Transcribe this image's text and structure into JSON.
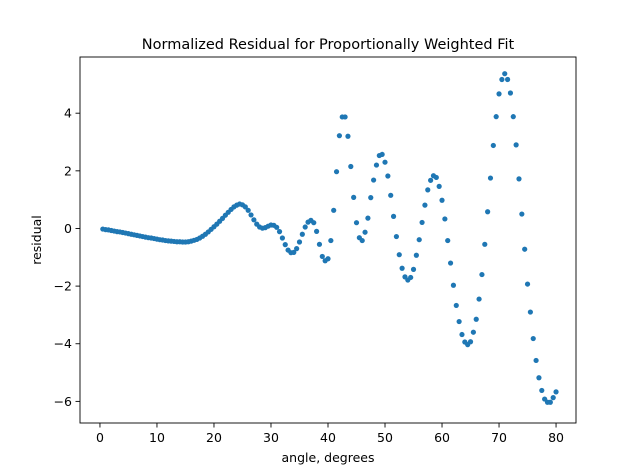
{
  "chart_data": {
    "type": "scatter",
    "title": "Normalized Residual for Proportionally Weighted Fit",
    "xlabel": "angle, degrees",
    "ylabel": "residual",
    "xlim": [
      -3.5,
      83.5
    ],
    "ylim": [
      -6.75,
      5.95
    ],
    "xticks": [
      0,
      10,
      20,
      30,
      40,
      50,
      60,
      70,
      80
    ],
    "yticks": [
      -6,
      -4,
      -2,
      0,
      2,
      4
    ],
    "xtick_labels": [
      "0",
      "10",
      "20",
      "30",
      "40",
      "50",
      "60",
      "70",
      "80"
    ],
    "ytick_labels": [
      "−6",
      "−4",
      "−2",
      "0",
      "2",
      "4"
    ],
    "grid": false,
    "marker_color": "#1f77b4",
    "series": [
      {
        "points": [
          [
            0.5,
            -0.02
          ],
          [
            1.0,
            -0.04
          ],
          [
            1.5,
            -0.05
          ],
          [
            2.0,
            -0.07
          ],
          [
            2.5,
            -0.09
          ],
          [
            3.0,
            -0.11
          ],
          [
            3.5,
            -0.12
          ],
          [
            4.0,
            -0.14
          ],
          [
            4.5,
            -0.16
          ],
          [
            5.0,
            -0.18
          ],
          [
            5.5,
            -0.2
          ],
          [
            6.0,
            -0.22
          ],
          [
            6.5,
            -0.24
          ],
          [
            7.0,
            -0.26
          ],
          [
            7.5,
            -0.28
          ],
          [
            8.0,
            -0.3
          ],
          [
            8.5,
            -0.32
          ],
          [
            9.0,
            -0.33
          ],
          [
            9.5,
            -0.35
          ],
          [
            10.0,
            -0.37
          ],
          [
            10.5,
            -0.39
          ],
          [
            11.0,
            -0.4
          ],
          [
            11.5,
            -0.42
          ],
          [
            12.0,
            -0.43
          ],
          [
            12.5,
            -0.44
          ],
          [
            13.0,
            -0.45
          ],
          [
            13.5,
            -0.46
          ],
          [
            14.0,
            -0.46
          ],
          [
            14.5,
            -0.47
          ],
          [
            15.0,
            -0.47
          ],
          [
            15.5,
            -0.46
          ],
          [
            16.0,
            -0.44
          ],
          [
            16.5,
            -0.41
          ],
          [
            17.0,
            -0.38
          ],
          [
            17.5,
            -0.33
          ],
          [
            18.0,
            -0.27
          ],
          [
            18.5,
            -0.2
          ],
          [
            19.0,
            -0.12
          ],
          [
            19.5,
            -0.03
          ],
          [
            20.0,
            0.06
          ],
          [
            20.5,
            0.15
          ],
          [
            21.0,
            0.25
          ],
          [
            21.5,
            0.35
          ],
          [
            22.0,
            0.46
          ],
          [
            22.5,
            0.56
          ],
          [
            23.0,
            0.66
          ],
          [
            23.5,
            0.75
          ],
          [
            24.0,
            0.81
          ],
          [
            24.5,
            0.85
          ],
          [
            25.0,
            0.82
          ],
          [
            25.5,
            0.75
          ],
          [
            26.0,
            0.63
          ],
          [
            26.5,
            0.47
          ],
          [
            27.0,
            0.3
          ],
          [
            27.5,
            0.15
          ],
          [
            28.0,
            0.05
          ],
          [
            28.5,
            0.01
          ],
          [
            29.0,
            0.03
          ],
          [
            29.5,
            0.08
          ],
          [
            30.0,
            0.12
          ],
          [
            30.5,
            0.11
          ],
          [
            31.0,
            0.04
          ],
          [
            31.5,
            -0.11
          ],
          [
            32.0,
            -0.33
          ],
          [
            32.5,
            -0.56
          ],
          [
            33.0,
            -0.75
          ],
          [
            33.5,
            -0.84
          ],
          [
            34.0,
            -0.83
          ],
          [
            34.5,
            -0.7
          ],
          [
            35.0,
            -0.47
          ],
          [
            35.5,
            -0.2
          ],
          [
            36.0,
            0.05
          ],
          [
            36.5,
            0.22
          ],
          [
            37.0,
            0.28
          ],
          [
            37.5,
            0.2
          ],
          [
            38.0,
            -0.1
          ],
          [
            38.5,
            -0.55
          ],
          [
            39.0,
            -0.97
          ],
          [
            39.5,
            -1.12
          ],
          [
            40.0,
            -1.05
          ],
          [
            40.5,
            -0.42
          ],
          [
            41.0,
            0.63
          ],
          [
            41.5,
            1.97
          ],
          [
            42.0,
            3.22
          ],
          [
            42.5,
            3.87
          ],
          [
            43.0,
            3.87
          ],
          [
            43.5,
            3.2
          ],
          [
            44.0,
            2.15
          ],
          [
            44.5,
            1.08
          ],
          [
            45.0,
            0.2
          ],
          [
            45.5,
            -0.32
          ],
          [
            46.0,
            -0.42
          ],
          [
            46.5,
            -0.13
          ],
          [
            47.0,
            0.36
          ],
          [
            47.5,
            1.07
          ],
          [
            48.0,
            1.68
          ],
          [
            48.5,
            2.2
          ],
          [
            49.0,
            2.53
          ],
          [
            49.5,
            2.57
          ],
          [
            50.0,
            2.3
          ],
          [
            50.5,
            1.82
          ],
          [
            51.0,
            1.15
          ],
          [
            51.5,
            0.42
          ],
          [
            52.0,
            -0.28
          ],
          [
            52.5,
            -0.91
          ],
          [
            53.0,
            -1.38
          ],
          [
            53.5,
            -1.68
          ],
          [
            54.0,
            -1.79
          ],
          [
            54.5,
            -1.7
          ],
          [
            55.0,
            -1.42
          ],
          [
            55.5,
            -0.93
          ],
          [
            56.0,
            -0.39
          ],
          [
            56.5,
            0.21
          ],
          [
            57.0,
            0.81
          ],
          [
            57.5,
            1.34
          ],
          [
            58.0,
            1.67
          ],
          [
            58.5,
            1.83
          ],
          [
            59.0,
            1.77
          ],
          [
            59.5,
            1.46
          ],
          [
            60.0,
            0.98
          ],
          [
            60.5,
            0.33
          ],
          [
            61.0,
            -0.42
          ],
          [
            61.5,
            -1.2
          ],
          [
            62.0,
            -1.97
          ],
          [
            62.5,
            -2.67
          ],
          [
            63.0,
            -3.23
          ],
          [
            63.5,
            -3.68
          ],
          [
            64.0,
            -3.94
          ],
          [
            64.5,
            -4.03
          ],
          [
            65.0,
            -3.93
          ],
          [
            65.5,
            -3.6
          ],
          [
            66.0,
            -3.15
          ],
          [
            66.5,
            -2.45
          ],
          [
            67.0,
            -1.6
          ],
          [
            67.5,
            -0.55
          ],
          [
            68.0,
            0.58
          ],
          [
            68.5,
            1.75
          ],
          [
            69.0,
            2.88
          ],
          [
            69.5,
            3.88
          ],
          [
            70.0,
            4.67
          ],
          [
            70.5,
            5.17
          ],
          [
            71.0,
            5.37
          ],
          [
            71.5,
            5.17
          ],
          [
            72.0,
            4.7
          ],
          [
            72.5,
            3.88
          ],
          [
            73.0,
            2.9
          ],
          [
            73.5,
            1.72
          ],
          [
            74.0,
            0.5
          ],
          [
            74.5,
            -0.72
          ],
          [
            75.0,
            -1.93
          ],
          [
            75.5,
            -2.9
          ],
          [
            76.0,
            -3.82
          ],
          [
            76.5,
            -4.58
          ],
          [
            77.0,
            -5.18
          ],
          [
            77.5,
            -5.62
          ],
          [
            78.0,
            -5.92
          ],
          [
            78.5,
            -6.03
          ],
          [
            79.0,
            -6.03
          ],
          [
            79.5,
            -5.87
          ],
          [
            80.0,
            -5.67
          ]
        ]
      }
    ]
  }
}
